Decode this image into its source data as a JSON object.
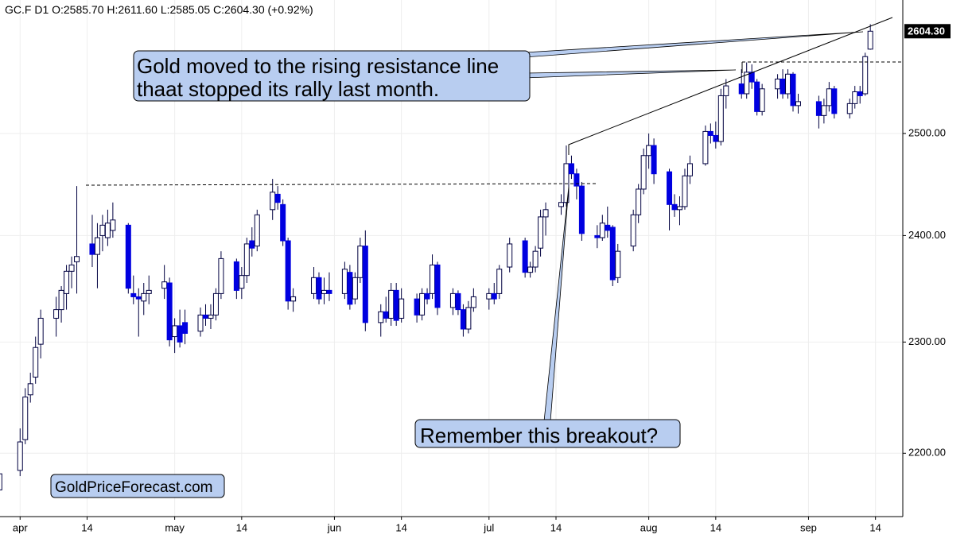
{
  "chart_data": {
    "type": "candlestick",
    "header": "GC.F  D1  O:2585.70  H:2611.60  L:2585.05  C:2604.30  (+0.92%)",
    "annotations": [
      "Gold moved to the rising resistance line",
      "thaat stopped its rally last month.",
      "Remember this breakout?",
      "GoldPriceForecast.com"
    ],
    "last_price": {
      "value": 2604.3,
      "label": "2604.30"
    },
    "log_scale": true,
    "grid": true,
    "up_color": "#ffffff",
    "down_color": "#0000e0",
    "outline_color": "#000040",
    "xlim": [
      -3.9,
      171.3
    ],
    "ylim": [
      2145,
      2637
    ],
    "yticks": [
      {
        "value": 2200,
        "label": "2200.00"
      },
      {
        "value": 2300,
        "label": "2300.00"
      },
      {
        "value": 2400,
        "label": "2400.00"
      },
      {
        "value": 2500,
        "label": "2500.00"
      }
    ],
    "xticks": [
      {
        "value": 0,
        "label": "apr"
      },
      {
        "value": 13,
        "label": "14"
      },
      {
        "value": 30,
        "label": "may"
      },
      {
        "value": 43,
        "label": "14"
      },
      {
        "value": 61,
        "label": "jun"
      },
      {
        "value": 74,
        "label": "14"
      },
      {
        "value": 91,
        "label": "jul"
      },
      {
        "value": 104,
        "label": "14"
      },
      {
        "value": 122,
        "label": "aug"
      },
      {
        "value": 135,
        "label": "14"
      },
      {
        "value": 153,
        "label": "sep"
      },
      {
        "value": 166,
        "label": "14"
      }
    ],
    "candles": [
      [
        -4,
        2168,
        2188,
        2162,
        2182
      ],
      [
        0,
        2185,
        2222,
        2180,
        2210
      ],
      [
        1,
        2212,
        2258,
        2208,
        2250
      ],
      [
        2,
        2252,
        2272,
        2245,
        2262
      ],
      [
        3,
        2268,
        2305,
        2262,
        2295
      ],
      [
        4,
        2298,
        2330,
        2285,
        2322
      ],
      [
        7,
        2322,
        2342,
        2305,
        2330
      ],
      [
        8,
        2330,
        2352,
        2318,
        2348
      ],
      [
        9,
        2345,
        2372,
        2330,
        2366
      ],
      [
        10,
        2366,
        2380,
        2350,
        2372
      ],
      [
        11,
        2375,
        2448,
        2345,
        2380
      ],
      [
        14,
        2392,
        2420,
        2370,
        2382
      ],
      [
        15,
        2382,
        2412,
        2350,
        2398
      ],
      [
        16,
        2400,
        2420,
        2385,
        2410
      ],
      [
        17,
        2398,
        2425,
        2390,
        2412
      ],
      [
        18,
        2405,
        2432,
        2398,
        2415
      ],
      [
        21,
        2410,
        2412,
        2345,
        2350
      ],
      [
        22,
        2345,
        2362,
        2335,
        2342
      ],
      [
        23,
        2342,
        2350,
        2305,
        2340
      ],
      [
        24,
        2338,
        2355,
        2325,
        2345
      ],
      [
        25,
        2345,
        2362,
        2335,
        2348
      ],
      [
        28,
        2350,
        2372,
        2340,
        2356
      ],
      [
        29,
        2355,
        2360,
        2296,
        2302
      ],
      [
        30,
        2305,
        2322,
        2290,
        2315
      ],
      [
        31,
        2315,
        2330,
        2295,
        2300
      ],
      [
        32,
        2318,
        2330,
        2298,
        2308
      ],
      [
        35,
        2310,
        2332,
        2305,
        2325
      ],
      [
        36,
        2325,
        2335,
        2315,
        2322
      ],
      [
        37,
        2322,
        2335,
        2312,
        2325
      ],
      [
        38,
        2325,
        2350,
        2320,
        2345
      ],
      [
        39,
        2345,
        2385,
        2340,
        2378
      ],
      [
        42,
        2375,
        2378,
        2340,
        2348
      ],
      [
        43,
        2350,
        2370,
        2340,
        2362
      ],
      [
        44,
        2362,
        2398,
        2355,
        2392
      ],
      [
        45,
        2395,
        2408,
        2380,
        2388
      ],
      [
        46,
        2390,
        2425,
        2385,
        2420
      ],
      [
        49,
        2425,
        2455,
        2415,
        2442
      ],
      [
        50,
        2440,
        2448,
        2425,
        2432
      ],
      [
        51,
        2430,
        2435,
        2390,
        2395
      ],
      [
        52,
        2395,
        2398,
        2330,
        2338
      ],
      [
        53,
        2338,
        2350,
        2328,
        2342
      ],
      [
        57,
        2345,
        2370,
        2340,
        2360
      ],
      [
        58,
        2360,
        2365,
        2335,
        2340
      ],
      [
        59,
        2345,
        2360,
        2335,
        2348
      ],
      [
        60,
        2348,
        2365,
        2338,
        2345
      ],
      [
        63,
        2345,
        2375,
        2340,
        2368
      ],
      [
        64,
        2365,
        2372,
        2330,
        2335
      ],
      [
        65,
        2340,
        2365,
        2335,
        2360
      ],
      [
        66,
        2360,
        2398,
        2355,
        2390
      ],
      [
        67,
        2390,
        2405,
        2310,
        2318
      ],
      [
        70,
        2318,
        2335,
        2305,
        2328
      ],
      [
        71,
        2328,
        2342,
        2318,
        2322
      ],
      [
        72,
        2322,
        2355,
        2315,
        2348
      ],
      [
        73,
        2348,
        2355,
        2315,
        2320
      ],
      [
        74,
        2322,
        2350,
        2318,
        2340
      ],
      [
        77,
        2340,
        2345,
        2318,
        2325
      ],
      [
        78,
        2325,
        2350,
        2320,
        2345
      ],
      [
        79,
        2345,
        2350,
        2335,
        2340
      ],
      [
        80,
        2345,
        2382,
        2340,
        2372
      ],
      [
        81,
        2372,
        2375,
        2325,
        2332
      ],
      [
        84,
        2332,
        2350,
        2325,
        2345
      ],
      [
        85,
        2345,
        2348,
        2325,
        2330
      ],
      [
        86,
        2330,
        2335,
        2305,
        2312
      ],
      [
        87,
        2312,
        2338,
        2308,
        2332
      ],
      [
        88,
        2332,
        2350,
        2328,
        2342
      ],
      [
        91,
        2340,
        2350,
        2330,
        2345
      ],
      [
        92,
        2345,
        2355,
        2335,
        2340
      ],
      [
        93,
        2345,
        2372,
        2340,
        2368
      ],
      [
        95,
        2370,
        2398,
        2365,
        2392
      ],
      [
        98,
        2395,
        2398,
        2360,
        2365
      ],
      [
        99,
        2365,
        2375,
        2360,
        2370
      ],
      [
        100,
        2370,
        2390,
        2365,
        2385
      ],
      [
        101,
        2388,
        2425,
        2380,
        2418
      ],
      [
        102,
        2418,
        2432,
        2400,
        2425
      ],
      [
        105,
        2428,
        2440,
        2420,
        2432
      ],
      [
        106,
        2432,
        2488,
        2428,
        2470
      ],
      [
        107,
        2470,
        2478,
        2455,
        2460
      ],
      [
        108,
        2460,
        2465,
        2435,
        2448
      ],
      [
        109,
        2448,
        2452,
        2395,
        2402
      ],
      [
        112,
        2400,
        2410,
        2388,
        2398
      ],
      [
        113,
        2398,
        2420,
        2395,
        2412
      ],
      [
        114,
        2410,
        2428,
        2398,
        2405
      ],
      [
        115,
        2408,
        2410,
        2352,
        2358
      ],
      [
        116,
        2360,
        2392,
        2355,
        2385
      ],
      [
        119,
        2390,
        2425,
        2385,
        2420
      ],
      [
        120,
        2420,
        2450,
        2412,
        2445
      ],
      [
        121,
        2445,
        2485,
        2440,
        2478
      ],
      [
        122,
        2478,
        2500,
        2465,
        2488
      ],
      [
        123,
        2488,
        2495,
        2450,
        2460
      ],
      [
        126,
        2462,
        2465,
        2405,
        2430
      ],
      [
        127,
        2430,
        2440,
        2418,
        2425
      ],
      [
        128,
        2425,
        2438,
        2410,
        2428
      ],
      [
        129,
        2428,
        2465,
        2425,
        2458
      ],
      [
        130,
        2458,
        2478,
        2450,
        2470
      ],
      [
        133,
        2470,
        2508,
        2468,
        2502
      ],
      [
        134,
        2502,
        2510,
        2490,
        2498
      ],
      [
        135,
        2498,
        2512,
        2485,
        2492
      ],
      [
        136,
        2492,
        2545,
        2488,
        2538
      ],
      [
        137,
        2538,
        2555,
        2525,
        2548
      ],
      [
        140,
        2550,
        2565,
        2535,
        2540
      ],
      [
        141,
        2540,
        2572,
        2535,
        2562
      ],
      [
        142,
        2562,
        2570,
        2545,
        2552
      ],
      [
        143,
        2552,
        2555,
        2518,
        2522
      ],
      [
        144,
        2522,
        2550,
        2518,
        2545
      ],
      [
        147,
        2545,
        2560,
        2535,
        2555
      ],
      [
        148,
        2555,
        2565,
        2535,
        2540
      ],
      [
        149,
        2540,
        2565,
        2535,
        2560
      ],
      [
        150,
        2560,
        2562,
        2522,
        2528
      ],
      [
        151,
        2528,
        2540,
        2520,
        2532
      ],
      [
        155,
        2532,
        2538,
        2505,
        2518
      ],
      [
        156,
        2518,
        2535,
        2510,
        2528
      ],
      [
        157,
        2528,
        2552,
        2522,
        2545
      ],
      [
        158,
        2545,
        2548,
        2515,
        2520
      ],
      [
        161,
        2520,
        2535,
        2515,
        2530
      ],
      [
        162,
        2530,
        2548,
        2525,
        2542
      ],
      [
        163,
        2542,
        2548,
        2530,
        2538
      ],
      [
        164,
        2540,
        2582,
        2538,
        2578
      ],
      [
        165,
        2585.7,
        2611.6,
        2585.05,
        2604.3
      ]
    ]
  }
}
